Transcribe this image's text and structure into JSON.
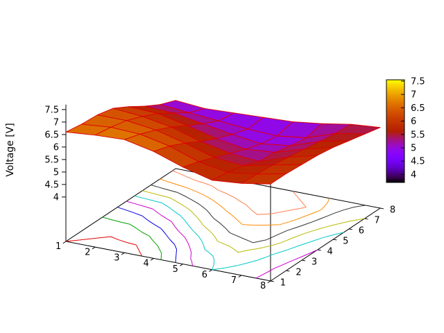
{
  "chart_data": {
    "type": "surface",
    "subtype": "3d-surface-with-base-contours",
    "title": "",
    "zlabel": "Voltage [V]",
    "xlabel": "",
    "ylabel": "",
    "x_ticks": [
      "1",
      "2",
      "3",
      "4",
      "5",
      "6",
      "7",
      "8"
    ],
    "y_ticks": [
      "1",
      "2",
      "3",
      "4",
      "5",
      "6",
      "7",
      "8"
    ],
    "z_ticks": [
      "4",
      "4.5",
      "5",
      "5.5",
      "6",
      "6.5",
      "7",
      "7.5"
    ],
    "z_tick_values": [
      4,
      4.5,
      5,
      5.5,
      6,
      6.5,
      7,
      7.5
    ],
    "x_range": [
      1,
      8
    ],
    "y_range": [
      1,
      8
    ],
    "colorbar": {
      "tick_labels": [
        "4",
        "4.5",
        "5",
        "5.5",
        "6",
        "6.5",
        "7",
        "7.5"
      ],
      "tick_values": [
        4,
        4.5,
        5,
        5.5,
        6,
        6.5,
        7,
        7.5
      ],
      "min": 3.7,
      "max": 7.55,
      "palette": "gnuplot rgbformulae 7,5,15 (black-purple-red-orange-yellow)"
    },
    "grid_z": [
      [
        6.6,
        6.7,
        6.75,
        6.5,
        6.1,
        5.8,
        5.9,
        6.1
      ],
      [
        6.5,
        6.6,
        6.55,
        6.3,
        5.9,
        5.7,
        5.85,
        6.1
      ],
      [
        6.45,
        6.45,
        6.3,
        6.0,
        5.65,
        5.55,
        5.8,
        6.05
      ],
      [
        6.3,
        6.2,
        6.0,
        5.65,
        5.4,
        5.3,
        5.7,
        6.0
      ],
      [
        5.95,
        5.9,
        5.65,
        5.35,
        5.15,
        5.25,
        5.6,
        5.9
      ],
      [
        5.55,
        5.5,
        5.3,
        5.1,
        4.95,
        5.1,
        5.5,
        5.75
      ],
      [
        5.2,
        5.1,
        5.0,
        4.9,
        4.85,
        5.0,
        5.4,
        5.6
      ],
      [
        4.95,
        4.85,
        4.9,
        4.95,
        5.0,
        5.15,
        5.35,
        5.45
      ]
    ],
    "contour_levels": [
      5.0,
      5.2,
      5.4,
      5.6,
      5.8,
      6.0,
      6.2,
      6.4,
      6.6
    ],
    "contour_colors": [
      "#ff7f50",
      "#ff8c00",
      "#303030",
      "#b8b800",
      "#00c8c8",
      "#cc00cc",
      "#0000dd",
      "#00a000",
      "#e00000"
    ],
    "mesh_color": "#dd0000",
    "border_color": "#000000",
    "background": "#ffffff"
  }
}
